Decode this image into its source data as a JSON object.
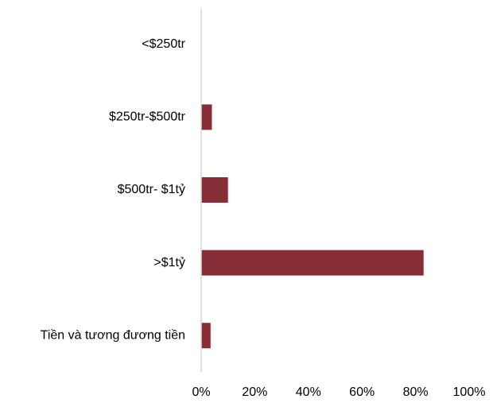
{
  "chart_data": {
    "type": "bar",
    "orientation": "horizontal",
    "categories": [
      "<$250tr",
      "$250tr-$500tr",
      "$500tr- $1tỷ",
      ">$1tỷ",
      "Tiền và tương đương tiền"
    ],
    "values": [
      0,
      4,
      10,
      83,
      3.5
    ],
    "xlim": [
      0,
      100
    ],
    "xticks": [
      "0%",
      "20%",
      "40%",
      "60%",
      "80%",
      "100%"
    ],
    "grid": false,
    "legend": "none",
    "bar_color": "#862d35",
    "axis_color": "#d9d9d9"
  }
}
